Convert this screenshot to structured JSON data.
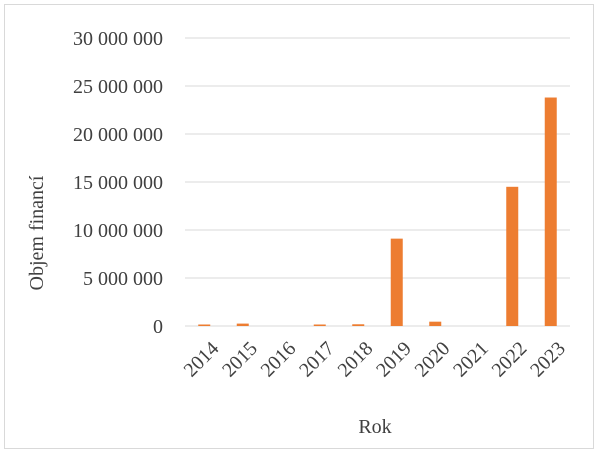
{
  "chart_data": {
    "type": "bar",
    "categories": [
      "2014",
      "2015",
      "2016",
      "2017",
      "2018",
      "2019",
      "2020",
      "2021",
      "2022",
      "2023"
    ],
    "values": [
      40000,
      250000,
      0,
      30000,
      180000,
      9100000,
      450000,
      0,
      14500000,
      23800000
    ],
    "xlabel": "Rok",
    "ylabel": "Objem financí",
    "ylim": [
      0,
      30000000
    ],
    "yticks": [
      0,
      5000000,
      10000000,
      15000000,
      20000000,
      25000000,
      30000000
    ],
    "ytick_labels": [
      "0",
      "5 000 000",
      "10 000 000",
      "15 000 000",
      "20 000 000",
      "25 000 000",
      "30 000 000"
    ],
    "grid": true,
    "legend": "none",
    "colors": {
      "bar": "#ED7D31",
      "grid": "#D9D9D9",
      "text": "#404040"
    }
  }
}
